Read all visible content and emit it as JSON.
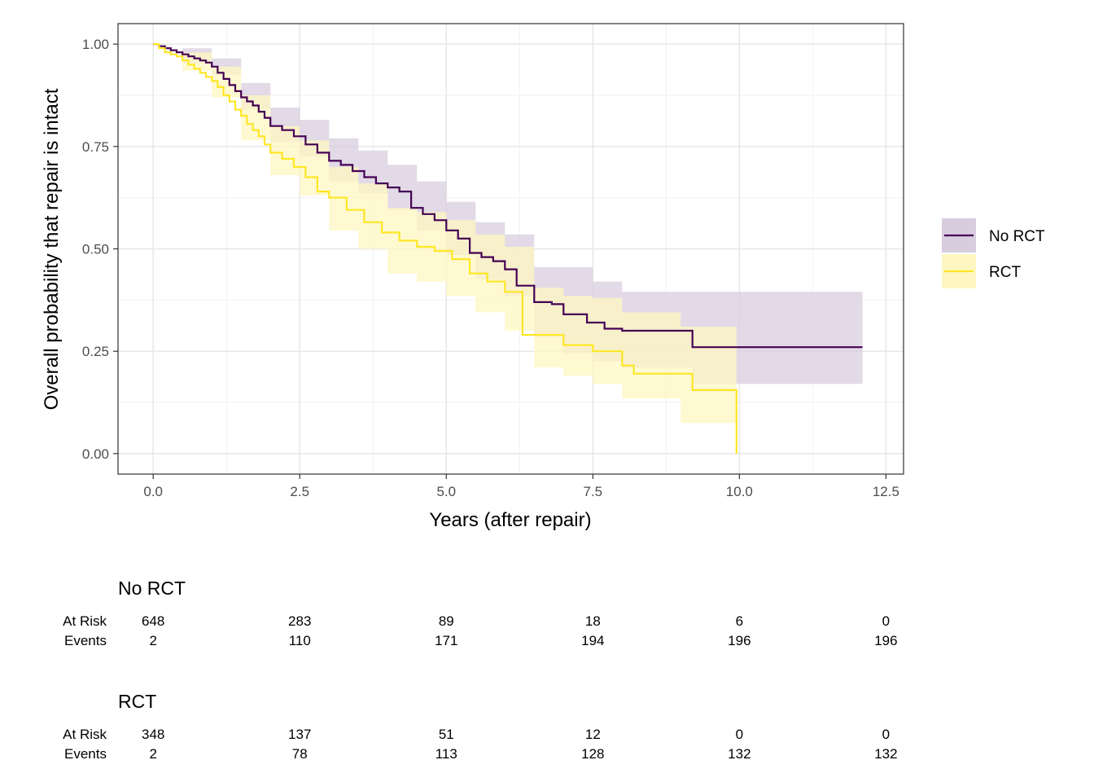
{
  "chart_data": {
    "type": "line",
    "subtype": "kaplan-meier step with confidence bands",
    "xlabel": "Years (after repair)",
    "ylabel": "Overall probability that repair is intact",
    "xlim": [
      -0.6,
      12.8
    ],
    "ylim": [
      -0.05,
      1.05
    ],
    "x_ticks": [
      0.0,
      2.5,
      5.0,
      7.5,
      10.0,
      12.5
    ],
    "x_tick_labels": [
      "0.0",
      "2.5",
      "5.0",
      "7.5",
      "10.0",
      "12.5"
    ],
    "y_ticks": [
      0.0,
      0.25,
      0.5,
      0.75,
      1.0
    ],
    "y_tick_labels": [
      "0.00",
      "0.25",
      "0.50",
      "0.75",
      "1.00"
    ],
    "grid": true,
    "legend_position": "right",
    "series": [
      {
        "name": "No RCT",
        "color": "#440154",
        "band_color": "#d8cddf",
        "steps": [
          [
            0.0,
            1.0
          ],
          [
            0.1,
            0.995
          ],
          [
            0.2,
            0.99
          ],
          [
            0.3,
            0.985
          ],
          [
            0.4,
            0.98
          ],
          [
            0.5,
            0.975
          ],
          [
            0.6,
            0.97
          ],
          [
            0.7,
            0.965
          ],
          [
            0.8,
            0.96
          ],
          [
            0.9,
            0.955
          ],
          [
            1.0,
            0.945
          ],
          [
            1.1,
            0.93
          ],
          [
            1.2,
            0.915
          ],
          [
            1.3,
            0.9
          ],
          [
            1.4,
            0.885
          ],
          [
            1.5,
            0.87
          ],
          [
            1.6,
            0.86
          ],
          [
            1.7,
            0.85
          ],
          [
            1.8,
            0.835
          ],
          [
            1.9,
            0.82
          ],
          [
            2.0,
            0.8
          ],
          [
            2.2,
            0.79
          ],
          [
            2.4,
            0.775
          ],
          [
            2.6,
            0.755
          ],
          [
            2.8,
            0.735
          ],
          [
            3.0,
            0.715
          ],
          [
            3.2,
            0.705
          ],
          [
            3.4,
            0.69
          ],
          [
            3.6,
            0.675
          ],
          [
            3.8,
            0.66
          ],
          [
            4.0,
            0.65
          ],
          [
            4.2,
            0.64
          ],
          [
            4.4,
            0.6
          ],
          [
            4.6,
            0.585
          ],
          [
            4.8,
            0.57
          ],
          [
            5.0,
            0.545
          ],
          [
            5.2,
            0.525
          ],
          [
            5.4,
            0.49
          ],
          [
            5.6,
            0.48
          ],
          [
            5.8,
            0.47
          ],
          [
            6.0,
            0.45
          ],
          [
            6.2,
            0.41
          ],
          [
            6.5,
            0.37
          ],
          [
            6.8,
            0.365
          ],
          [
            7.0,
            0.34
          ],
          [
            7.4,
            0.32
          ],
          [
            7.7,
            0.305
          ],
          [
            8.0,
            0.3
          ],
          [
            9.2,
            0.26
          ],
          [
            12.1,
            0.26
          ]
        ],
        "upper": [
          [
            0.0,
            1.0
          ],
          [
            0.5,
            0.99
          ],
          [
            1.0,
            0.965
          ],
          [
            1.5,
            0.905
          ],
          [
            2.0,
            0.845
          ],
          [
            2.5,
            0.815
          ],
          [
            3.0,
            0.77
          ],
          [
            3.5,
            0.74
          ],
          [
            4.0,
            0.705
          ],
          [
            4.5,
            0.665
          ],
          [
            5.0,
            0.615
          ],
          [
            5.5,
            0.565
          ],
          [
            6.0,
            0.535
          ],
          [
            6.5,
            0.455
          ],
          [
            7.0,
            0.455
          ],
          [
            7.5,
            0.42
          ],
          [
            8.0,
            0.395
          ],
          [
            9.2,
            0.395
          ],
          [
            12.1,
            0.395
          ]
        ],
        "lower": [
          [
            0.0,
            1.0
          ],
          [
            0.5,
            0.955
          ],
          [
            1.0,
            0.925
          ],
          [
            1.5,
            0.84
          ],
          [
            2.0,
            0.76
          ],
          [
            2.5,
            0.725
          ],
          [
            3.0,
            0.665
          ],
          [
            3.5,
            0.635
          ],
          [
            4.0,
            0.595
          ],
          [
            4.5,
            0.545
          ],
          [
            5.0,
            0.485
          ],
          [
            5.5,
            0.425
          ],
          [
            6.0,
            0.385
          ],
          [
            6.5,
            0.285
          ],
          [
            7.0,
            0.245
          ],
          [
            7.5,
            0.225
          ],
          [
            8.0,
            0.21
          ],
          [
            9.2,
            0.17
          ],
          [
            12.1,
            0.17
          ]
        ]
      },
      {
        "name": "RCT",
        "color": "#fde725",
        "band_color": "#fff7c2",
        "steps": [
          [
            0.0,
            1.0
          ],
          [
            0.1,
            0.99
          ],
          [
            0.2,
            0.98
          ],
          [
            0.3,
            0.975
          ],
          [
            0.4,
            0.97
          ],
          [
            0.5,
            0.96
          ],
          [
            0.6,
            0.95
          ],
          [
            0.7,
            0.94
          ],
          [
            0.8,
            0.93
          ],
          [
            0.9,
            0.92
          ],
          [
            1.0,
            0.91
          ],
          [
            1.1,
            0.895
          ],
          [
            1.2,
            0.875
          ],
          [
            1.3,
            0.86
          ],
          [
            1.4,
            0.84
          ],
          [
            1.5,
            0.825
          ],
          [
            1.6,
            0.805
          ],
          [
            1.7,
            0.79
          ],
          [
            1.8,
            0.775
          ],
          [
            1.9,
            0.755
          ],
          [
            2.0,
            0.735
          ],
          [
            2.2,
            0.72
          ],
          [
            2.4,
            0.7
          ],
          [
            2.6,
            0.675
          ],
          [
            2.8,
            0.64
          ],
          [
            3.0,
            0.625
          ],
          [
            3.3,
            0.595
          ],
          [
            3.6,
            0.565
          ],
          [
            3.9,
            0.54
          ],
          [
            4.2,
            0.52
          ],
          [
            4.5,
            0.505
          ],
          [
            4.8,
            0.495
          ],
          [
            5.1,
            0.475
          ],
          [
            5.4,
            0.44
          ],
          [
            5.7,
            0.42
          ],
          [
            6.0,
            0.395
          ],
          [
            6.3,
            0.29
          ],
          [
            6.8,
            0.29
          ],
          [
            7.0,
            0.265
          ],
          [
            7.5,
            0.25
          ],
          [
            8.0,
            0.215
          ],
          [
            8.2,
            0.195
          ],
          [
            9.2,
            0.155
          ],
          [
            9.95,
            0.155
          ],
          [
            9.95,
            0.0
          ]
        ],
        "upper": [
          [
            0.0,
            1.0
          ],
          [
            0.5,
            0.98
          ],
          [
            1.0,
            0.945
          ],
          [
            1.5,
            0.875
          ],
          [
            2.0,
            0.8
          ],
          [
            2.5,
            0.765
          ],
          [
            3.0,
            0.7
          ],
          [
            3.5,
            0.66
          ],
          [
            4.0,
            0.6
          ],
          [
            4.5,
            0.59
          ],
          [
            5.0,
            0.57
          ],
          [
            5.5,
            0.535
          ],
          [
            6.0,
            0.505
          ],
          [
            6.5,
            0.405
          ],
          [
            7.0,
            0.385
          ],
          [
            7.5,
            0.38
          ],
          [
            8.0,
            0.345
          ],
          [
            9.0,
            0.31
          ],
          [
            9.95,
            0.31
          ]
        ],
        "lower": [
          [
            0.0,
            1.0
          ],
          [
            0.5,
            0.935
          ],
          [
            1.0,
            0.87
          ],
          [
            1.5,
            0.765
          ],
          [
            2.0,
            0.68
          ],
          [
            2.5,
            0.63
          ],
          [
            3.0,
            0.545
          ],
          [
            3.5,
            0.5
          ],
          [
            4.0,
            0.44
          ],
          [
            4.5,
            0.42
          ],
          [
            5.0,
            0.385
          ],
          [
            5.5,
            0.345
          ],
          [
            6.0,
            0.3
          ],
          [
            6.5,
            0.21
          ],
          [
            7.0,
            0.19
          ],
          [
            7.5,
            0.17
          ],
          [
            8.0,
            0.135
          ],
          [
            9.0,
            0.075
          ],
          [
            9.95,
            0.075
          ]
        ]
      }
    ]
  },
  "risk_table": {
    "time_points": [
      0.0,
      2.5,
      5.0,
      7.5,
      10.0,
      12.5
    ],
    "row_labels": {
      "at_risk": "At Risk",
      "events": "Events"
    },
    "groups": [
      {
        "name": "No RCT",
        "at_risk": [
          "648",
          "283",
          "89",
          "18",
          "6",
          "0"
        ],
        "events": [
          "2",
          "110",
          "171",
          "194",
          "196",
          "196"
        ]
      },
      {
        "name": "RCT",
        "at_risk": [
          "348",
          "137",
          "51",
          "12",
          "0",
          "0"
        ],
        "events": [
          "2",
          "78",
          "113",
          "128",
          "132",
          "132"
        ]
      }
    ]
  }
}
